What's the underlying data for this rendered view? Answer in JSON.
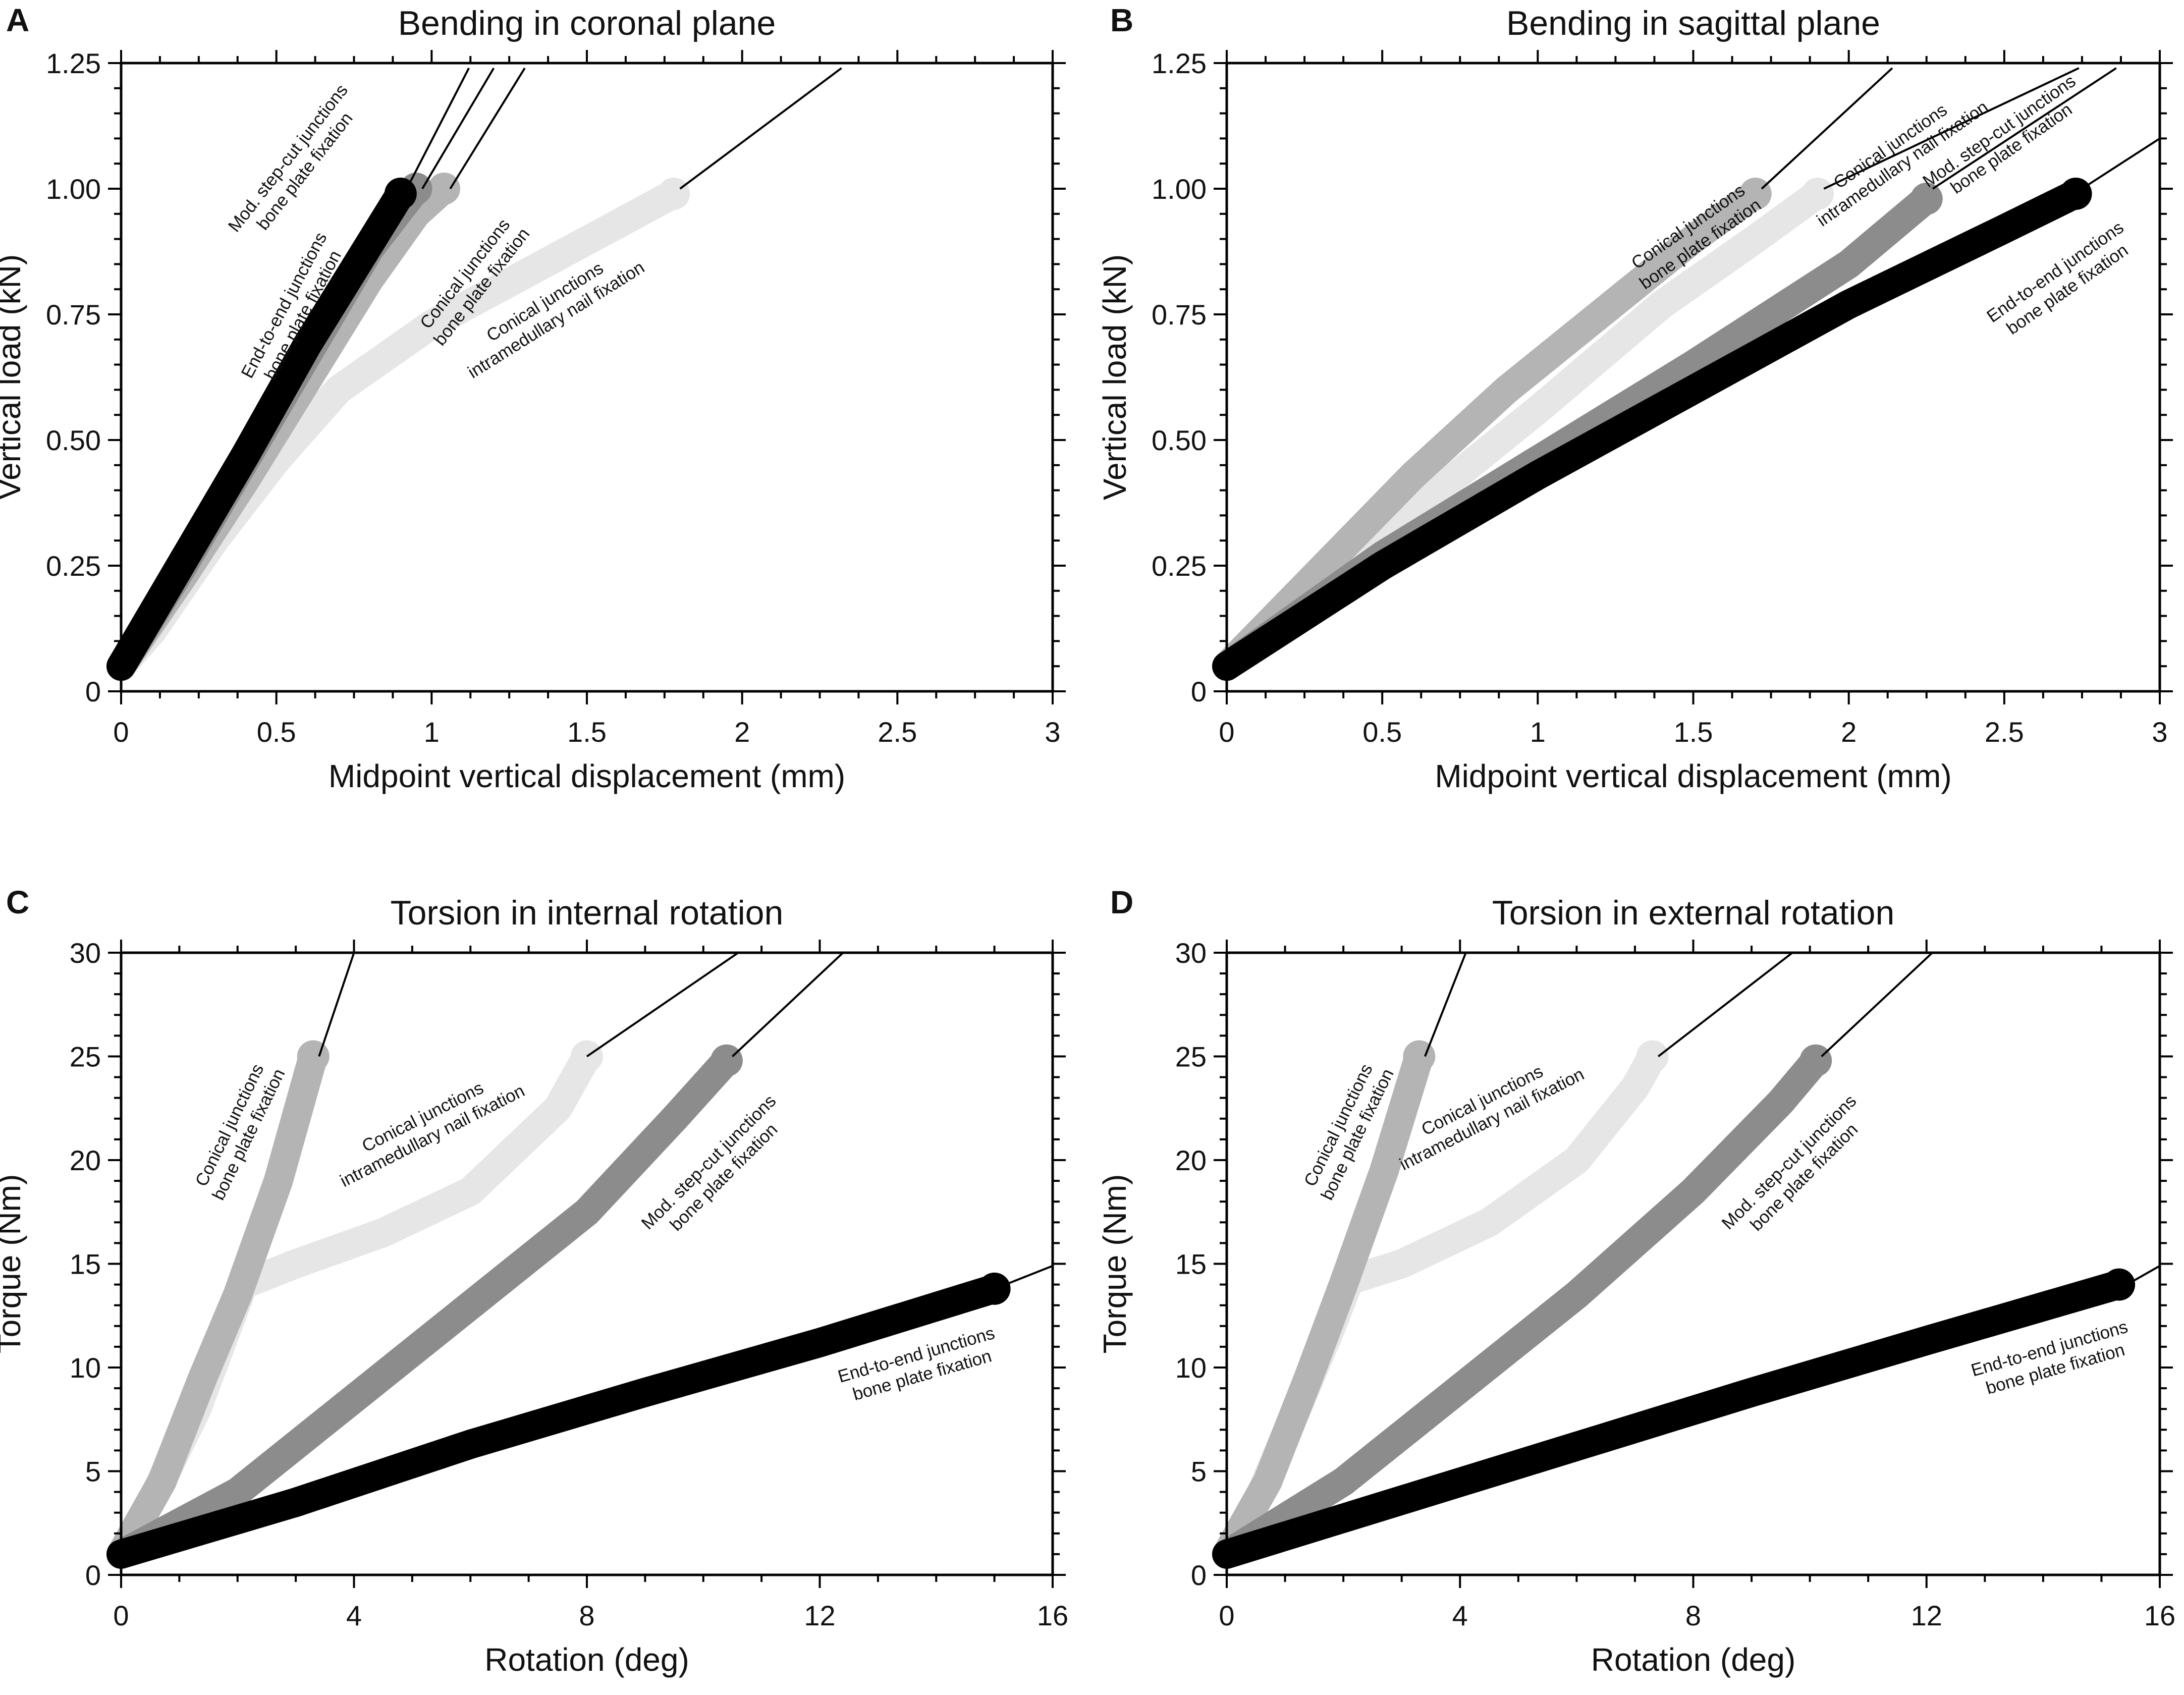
{
  "colors": {
    "end_to_end": "#000000",
    "mod_step_cut": "#8c8c8c",
    "conical_plate": "#b4b4b4",
    "conical_nail": "#e6e6e6"
  },
  "chart_data": [
    {
      "id": "A",
      "type": "line",
      "letter": "A",
      "title": "Bending in coronal plane",
      "xlabel": "Midpoint vertical displacement (mm)",
      "ylabel": "Vertical load (kN)",
      "xlim": [
        0,
        3
      ],
      "ylim": [
        0,
        1.25
      ],
      "xticks": [
        0,
        0.5,
        1,
        1.5,
        2,
        2.5,
        3
      ],
      "xtick_labels": [
        "0",
        "0.5",
        "1",
        "1.5",
        "2",
        "2.5",
        "3"
      ],
      "yticks": [
        0,
        0.25,
        0.5,
        0.75,
        1.0,
        1.25
      ],
      "ytick_labels": [
        "0",
        "0.25",
        "0.50",
        "0.75",
        "1.00",
        "1.25"
      ],
      "series": [
        {
          "name": "Conical junctions intramedullary nail fixation",
          "color": "#e6e6e6",
          "line1": "Conical junctions",
          "line2": "intramedullary nail fixation",
          "points": [
            [
              0,
              0.05
            ],
            [
              0.1,
              0.12
            ],
            [
              0.3,
              0.3
            ],
            [
              0.5,
              0.46
            ],
            [
              0.7,
              0.6
            ],
            [
              1.0,
              0.73
            ],
            [
              1.3,
              0.83
            ],
            [
              1.6,
              0.93
            ],
            [
              1.78,
              0.99
            ]
          ],
          "label_at": [
            1.38,
            0.76
          ],
          "label_angle": -32,
          "leader": [
            [
              1.8,
              1.0
            ],
            [
              2.32,
              1.24
            ]
          ]
        },
        {
          "name": "Conical junctions bone plate fixation",
          "color": "#b4b4b4",
          "line1": "Conical junctions",
          "line2": "bone plate fixation",
          "points": [
            [
              0,
              0.05
            ],
            [
              0.2,
              0.23
            ],
            [
              0.4,
              0.42
            ],
            [
              0.6,
              0.62
            ],
            [
              0.8,
              0.82
            ],
            [
              0.95,
              0.95
            ],
            [
              1.04,
              1.0
            ]
          ],
          "label_at": [
            1.13,
            0.82
          ],
          "label_angle": -52,
          "leader": [
            [
              1.06,
              1.0
            ],
            [
              1.3,
              1.24
            ]
          ]
        },
        {
          "name": "Mod. step-cut junctions bone plate fixation",
          "color": "#8c8c8c",
          "line1": "Mod. step-cut junctions",
          "line2": "bone plate fixation",
          "points": [
            [
              0,
              0.05
            ],
            [
              0.2,
              0.25
            ],
            [
              0.4,
              0.46
            ],
            [
              0.6,
              0.67
            ],
            [
              0.8,
              0.88
            ],
            [
              0.95,
              1.0
            ]
          ],
          "label_at": [
            0.56,
            1.05
          ],
          "label_angle": -52,
          "leader": [
            [
              0.97,
              1.0
            ],
            [
              1.2,
              1.24
            ]
          ]
        },
        {
          "name": "End-to-end junctions bone plate fixation",
          "color": "#000000",
          "line1": "End-to-end junctions",
          "line2": "bone plate fixation",
          "points": [
            [
              0,
              0.05
            ],
            [
              0.2,
              0.26
            ],
            [
              0.4,
              0.47
            ],
            [
              0.6,
              0.69
            ],
            [
              0.8,
              0.89
            ],
            [
              0.9,
              0.99
            ]
          ],
          "label_at": [
            0.55,
            0.76
          ],
          "label_angle": -62,
          "leader": [
            [
              0.92,
              1.0
            ],
            [
              1.12,
              1.24
            ]
          ]
        }
      ]
    },
    {
      "id": "B",
      "type": "line",
      "letter": "B",
      "title": "Bending in sagittal plane",
      "xlabel": "Midpoint vertical displacement  (mm)",
      "ylabel": "Vertical load (kN)",
      "xlim": [
        0,
        3
      ],
      "ylim": [
        0,
        1.25
      ],
      "xticks": [
        0,
        0.5,
        1,
        1.5,
        2,
        2.5,
        3
      ],
      "xtick_labels": [
        "0",
        "0.5",
        "1",
        "1.5",
        "2",
        "2.5",
        "3"
      ],
      "yticks": [
        0,
        0.25,
        0.5,
        0.75,
        1.0,
        1.25
      ],
      "ytick_labels": [
        "0",
        "0.25",
        "0.50",
        "0.75",
        "1.00",
        "1.25"
      ],
      "series": [
        {
          "name": "Conical junctions intramedullary nail fixation",
          "color": "#e6e6e6",
          "line1": "Conical junctions",
          "line2": "intramedullary nail fixation",
          "points": [
            [
              0,
              0.05
            ],
            [
              0.3,
              0.2
            ],
            [
              0.6,
              0.36
            ],
            [
              1.0,
              0.56
            ],
            [
              1.4,
              0.77
            ],
            [
              1.7,
              0.9
            ],
            [
              1.9,
              0.99
            ]
          ],
          "label_at": [
            2.15,
            1.07
          ],
          "label_angle": -35,
          "leader": [
            [
              1.92,
              1.0
            ],
            [
              2.74,
              1.24
            ]
          ]
        },
        {
          "name": "Conical junctions bone plate fixation",
          "color": "#b4b4b4",
          "line1": "Conical junctions",
          "line2": "bone plate fixation",
          "points": [
            [
              0,
              0.05
            ],
            [
              0.3,
              0.24
            ],
            [
              0.6,
              0.43
            ],
            [
              0.9,
              0.6
            ],
            [
              1.2,
              0.75
            ],
            [
              1.5,
              0.9
            ],
            [
              1.7,
              0.99
            ]
          ],
          "label_at": [
            1.5,
            0.91
          ],
          "label_angle": -35,
          "leader": [
            [
              1.72,
              1.0
            ],
            [
              2.14,
              1.24
            ]
          ]
        },
        {
          "name": "Mod. step-cut junctions bone plate fixation",
          "color": "#8c8c8c",
          "line1": "Mod. step-cut junctions",
          "line2": "bone plate fixation",
          "points": [
            [
              0,
              0.05
            ],
            [
              0.5,
              0.27
            ],
            [
              1.0,
              0.46
            ],
            [
              1.5,
              0.65
            ],
            [
              2.0,
              0.85
            ],
            [
              2.25,
              0.98
            ]
          ],
          "label_at": [
            2.5,
            1.1
          ],
          "label_angle": -35,
          "leader": [
            [
              2.27,
              1.0
            ],
            [
              2.86,
              1.24
            ]
          ]
        },
        {
          "name": "End-to-end junctions bone plate fixation",
          "color": "#000000",
          "line1": "End-to-end junctions",
          "line2": "bone plate fixation",
          "points": [
            [
              0,
              0.05
            ],
            [
              0.5,
              0.25
            ],
            [
              1.0,
              0.43
            ],
            [
              1.5,
              0.6
            ],
            [
              2.0,
              0.77
            ],
            [
              2.5,
              0.92
            ],
            [
              2.73,
              0.99
            ]
          ],
          "label_at": [
            2.68,
            0.82
          ],
          "label_angle": -35,
          "leader": [
            [
              2.75,
              1.0
            ],
            [
              3.0,
              1.1
            ]
          ]
        }
      ]
    },
    {
      "id": "C",
      "type": "line",
      "letter": "C",
      "title": "Torsion in internal rotation",
      "xlabel": "Rotation (deg)",
      "ylabel": "Torque (Nm)",
      "xlim": [
        0,
        16
      ],
      "ylim": [
        0,
        30
      ],
      "xticks": [
        0,
        4,
        8,
        12,
        16
      ],
      "xtick_labels": [
        "0",
        "4",
        "8",
        "12",
        "16"
      ],
      "yticks": [
        0,
        5,
        10,
        15,
        20,
        25,
        30
      ],
      "ytick_labels": [
        "0",
        "5",
        "10",
        "15",
        "20",
        "25",
        "30"
      ],
      "series": [
        {
          "name": "Conical junctions intramedullary nail fixation",
          "color": "#e6e6e6",
          "line1": "Conical junctions",
          "line2": "intramedullary nail fixation",
          "points": [
            [
              0,
              1.0
            ],
            [
              0.6,
              4.0
            ],
            [
              1.3,
              8.0
            ],
            [
              1.9,
              12.5
            ],
            [
              2.1,
              14.0
            ],
            [
              3.0,
              15.0
            ],
            [
              4.5,
              16.5
            ],
            [
              6.0,
              18.5
            ],
            [
              7.5,
              22.5
            ],
            [
              8.0,
              25.0
            ]
          ],
          "label_at": [
            5.25,
            21.7
          ],
          "label_angle": -27,
          "leader": [
            [
              8.0,
              25.0
            ],
            [
              10.6,
              30.0
            ]
          ]
        },
        {
          "name": "Conical junctions bone plate fixation",
          "color": "#b4b4b4",
          "line1": "Conical junctions",
          "line2": "bone plate fixation",
          "points": [
            [
              0,
              1.0
            ],
            [
              0.7,
              4.5
            ],
            [
              1.4,
              9.5
            ],
            [
              2.0,
              13.5
            ],
            [
              2.7,
              19.0
            ],
            [
              3.3,
              25.0
            ]
          ],
          "label_at": [
            2.0,
            21.5
          ],
          "label_angle": -64,
          "leader": [
            [
              3.4,
              25.0
            ],
            [
              4.0,
              30.0
            ]
          ]
        },
        {
          "name": "Mod. step-cut junctions bone plate fixation",
          "color": "#8c8c8c",
          "line1": "Mod. step-cut junctions",
          "line2": "bone plate fixation",
          "points": [
            [
              0,
              1.0
            ],
            [
              2.0,
              4.0
            ],
            [
              4.0,
              8.5
            ],
            [
              6.0,
              13.0
            ],
            [
              8.0,
              17.5
            ],
            [
              9.5,
              22.0
            ],
            [
              10.4,
              24.8
            ]
          ],
          "label_at": [
            10.2,
            19.6
          ],
          "label_angle": -45,
          "leader": [
            [
              10.5,
              25.0
            ],
            [
              12.4,
              30.0
            ]
          ]
        },
        {
          "name": "End-to-end junctions bone plate fixation",
          "color": "#000000",
          "line1": "End-to-end junctions",
          "line2": "bone plate fixation",
          "points": [
            [
              0,
              1.0
            ],
            [
              3.0,
              3.5
            ],
            [
              6.0,
              6.3
            ],
            [
              9.0,
              8.8
            ],
            [
              12.0,
              11.2
            ],
            [
              15.0,
              13.8
            ]
          ],
          "label_at": [
            13.7,
            10.2
          ],
          "label_angle": -16,
          "leader": [
            [
              15.1,
              13.9
            ],
            [
              16.0,
              14.9
            ]
          ]
        }
      ]
    },
    {
      "id": "D",
      "type": "line",
      "letter": "D",
      "title": "Torsion in external rotation",
      "xlabel": "Rotation (deg)",
      "ylabel": "Torque (Nm)",
      "xlim": [
        0,
        16
      ],
      "ylim": [
        0,
        30
      ],
      "xticks": [
        0,
        4,
        8,
        12,
        16
      ],
      "xtick_labels": [
        "0",
        "4",
        "8",
        "12",
        "16"
      ],
      "yticks": [
        0,
        5,
        10,
        15,
        20,
        25,
        30
      ],
      "ytick_labels": [
        "0",
        "5",
        "10",
        "15",
        "20",
        "25",
        "30"
      ],
      "series": [
        {
          "name": "Conical junctions intramedullary nail fixation",
          "color": "#e6e6e6",
          "line1": "Conical junctions",
          "line2": "intramedullary nail fixation",
          "points": [
            [
              0,
              1.0
            ],
            [
              0.6,
              4.0
            ],
            [
              1.2,
              8.0
            ],
            [
              1.8,
              12.0
            ],
            [
              2.1,
              14.2
            ],
            [
              3.0,
              15.0
            ],
            [
              4.5,
              17.0
            ],
            [
              6.0,
              20.0
            ],
            [
              7.0,
              23.5
            ],
            [
              7.3,
              25.0
            ]
          ],
          "label_at": [
            4.45,
            22.5
          ],
          "label_angle": -27,
          "leader": [
            [
              7.4,
              25.0
            ],
            [
              9.7,
              30.0
            ]
          ]
        },
        {
          "name": "Conical junctions bone plate fixation",
          "color": "#b4b4b4",
          "line1": "Conical junctions",
          "line2": "bone plate fixation",
          "points": [
            [
              0,
              1.0
            ],
            [
              0.7,
              4.5
            ],
            [
              1.4,
              9.5
            ],
            [
              2.0,
              14.0
            ],
            [
              2.7,
              19.5
            ],
            [
              3.3,
              25.0
            ]
          ],
          "label_at": [
            2.05,
            21.5
          ],
          "label_angle": -64,
          "leader": [
            [
              3.4,
              25.0
            ],
            [
              4.1,
              30.0
            ]
          ]
        },
        {
          "name": "Mod. step-cut junctions bone plate fixation",
          "color": "#8c8c8c",
          "line1": "Mod. step-cut junctions",
          "line2": "bone plate fixation",
          "points": [
            [
              0,
              1.0
            ],
            [
              2.0,
              4.5
            ],
            [
              4.0,
              9.0
            ],
            [
              6.0,
              13.5
            ],
            [
              8.0,
              18.5
            ],
            [
              9.5,
              22.8
            ],
            [
              10.1,
              24.8
            ]
          ],
          "label_at": [
            9.75,
            19.6
          ],
          "label_angle": -45,
          "leader": [
            [
              10.2,
              25.0
            ],
            [
              12.1,
              30.0
            ]
          ]
        },
        {
          "name": "End-to-end junctions bone plate fixation",
          "color": "#000000",
          "line1": "End-to-end junctions",
          "line2": "bone plate fixation",
          "points": [
            [
              0,
              1.0
            ],
            [
              3.0,
              3.6
            ],
            [
              6.0,
              6.2
            ],
            [
              9.0,
              8.8
            ],
            [
              12.0,
              11.3
            ],
            [
              15.3,
              14.0
            ]
          ],
          "label_at": [
            14.15,
            10.5
          ],
          "label_angle": -16,
          "leader": [
            [
              15.5,
              14.1
            ],
            [
              16.0,
              14.9
            ]
          ]
        }
      ]
    }
  ]
}
